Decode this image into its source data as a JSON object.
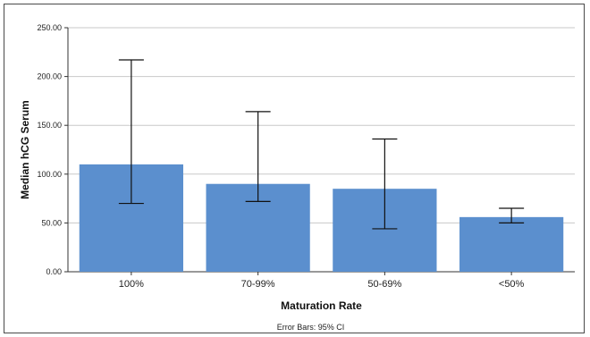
{
  "chart_data": {
    "type": "bar",
    "categories": [
      "100%",
      "70-99%",
      "50-69%",
      "<50%"
    ],
    "values": [
      110,
      90,
      85,
      56
    ],
    "error_low": [
      70,
      72,
      44,
      50
    ],
    "error_high": [
      217,
      164,
      136,
      65
    ],
    "xlabel": "Maturation Rate",
    "ylabel": "Median hCG Serum",
    "ylim": [
      0,
      250
    ],
    "yticks": [
      "0.00",
      "50.00",
      "100.00",
      "150.00",
      "200.00",
      "250.00"
    ],
    "grid": true,
    "bar_color": "#5b8fce",
    "footnote": "Error Bars: 95% CI"
  }
}
